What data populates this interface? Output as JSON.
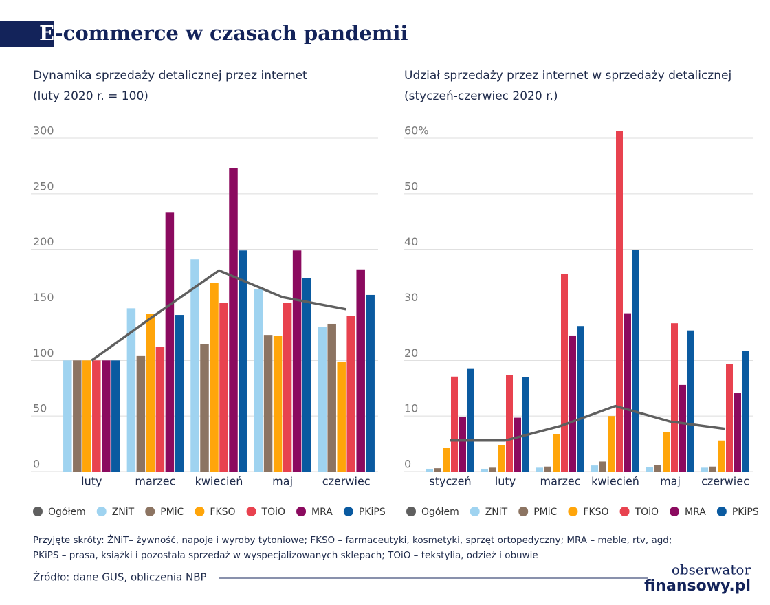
{
  "header": {
    "title": "E-commerce w czasach pandemii"
  },
  "chart_data": [
    {
      "type": "bar",
      "title": "Dynamika sprzedaży detalicznej przez internet",
      "subtitle": "(luty 2020 r. = 100)",
      "categories": [
        "luty",
        "marzec",
        "kwiecień",
        "maj",
        "czerwiec"
      ],
      "ylim": [
        0,
        300
      ],
      "yticks": [
        0,
        50,
        100,
        150,
        200,
        250,
        300
      ],
      "grid": true,
      "series": [
        {
          "name": "Ogółem",
          "type": "line",
          "color": "#5f5f5f",
          "values": [
            100,
            141,
            181,
            157,
            146
          ]
        },
        {
          "name": "ZNiT",
          "color": "#9fd3f0",
          "values": [
            100,
            147,
            191,
            164,
            130
          ]
        },
        {
          "name": "PMiC",
          "color": "#8c7462",
          "values": [
            100,
            104,
            115,
            123,
            133
          ]
        },
        {
          "name": "FKSO",
          "color": "#ffa50a",
          "values": [
            100,
            142,
            170,
            122,
            99
          ]
        },
        {
          "name": "TOiO",
          "color": "#e8424f",
          "values": [
            100,
            112,
            152,
            152,
            140
          ]
        },
        {
          "name": "MRA",
          "color": "#8b0a5f",
          "values": [
            100,
            233,
            273,
            199,
            182
          ]
        },
        {
          "name": "PKiPS",
          "color": "#0a5aa0",
          "values": [
            100,
            141,
            199,
            174,
            159
          ]
        }
      ]
    },
    {
      "type": "bar",
      "title": "Udział sprzedaży przez internet w sprzedaży detalicznej",
      "subtitle": "(styczeń-czerwiec 2020 r.)",
      "categories": [
        "styczeń",
        "luty",
        "marzec",
        "kwiecień",
        "maj",
        "czerwiec"
      ],
      "ylim": [
        0,
        60
      ],
      "yticks": [
        0,
        10,
        20,
        30,
        40,
        50,
        {
          "value": 60,
          "label": "60%"
        }
      ],
      "grid": true,
      "series": [
        {
          "name": "Ogółem",
          "type": "line",
          "color": "#5f5f5f",
          "values": [
            5.6,
            5.6,
            8.2,
            11.8,
            9.0,
            7.7
          ]
        },
        {
          "name": "ZNiT",
          "color": "#9fd3f0",
          "values": [
            0.5,
            0.5,
            0.7,
            1.1,
            0.8,
            0.7
          ]
        },
        {
          "name": "PMiC",
          "color": "#8c7462",
          "values": [
            0.6,
            0.7,
            0.9,
            1.8,
            1.2,
            0.9
          ]
        },
        {
          "name": "FKSO",
          "color": "#ffa50a",
          "values": [
            4.3,
            4.8,
            6.8,
            10.0,
            7.1,
            5.6
          ]
        },
        {
          "name": "TOiO",
          "color": "#e8424f",
          "values": [
            17.1,
            17.4,
            35.6,
            61.3,
            26.7,
            19.4
          ]
        },
        {
          "name": "MRA",
          "color": "#8b0a5f",
          "values": [
            9.8,
            9.7,
            24.5,
            28.5,
            15.6,
            14.1
          ]
        },
        {
          "name": "PKiPS",
          "color": "#0a5aa0",
          "values": [
            18.6,
            17.0,
            26.2,
            39.9,
            25.4,
            21.7
          ]
        }
      ]
    }
  ],
  "notes": [
    "Przyjęte skróty: ŻNiT– żywność, napoje i wyroby tytoniowe; FKSO – farmaceutyki, kosmetyki, sprzęt ortopedyczny; MRA – meble, rtv, agd;",
    "PKiPS – prasa, książki i pozostała sprzedaż w wyspecjalizowanych sklepach; TOiO – tekstylia, odzież i obuwie"
  ],
  "source": "Źródło: dane GUS, obliczenia NBP",
  "logo": [
    "obserwator",
    "finansowy.pl"
  ]
}
